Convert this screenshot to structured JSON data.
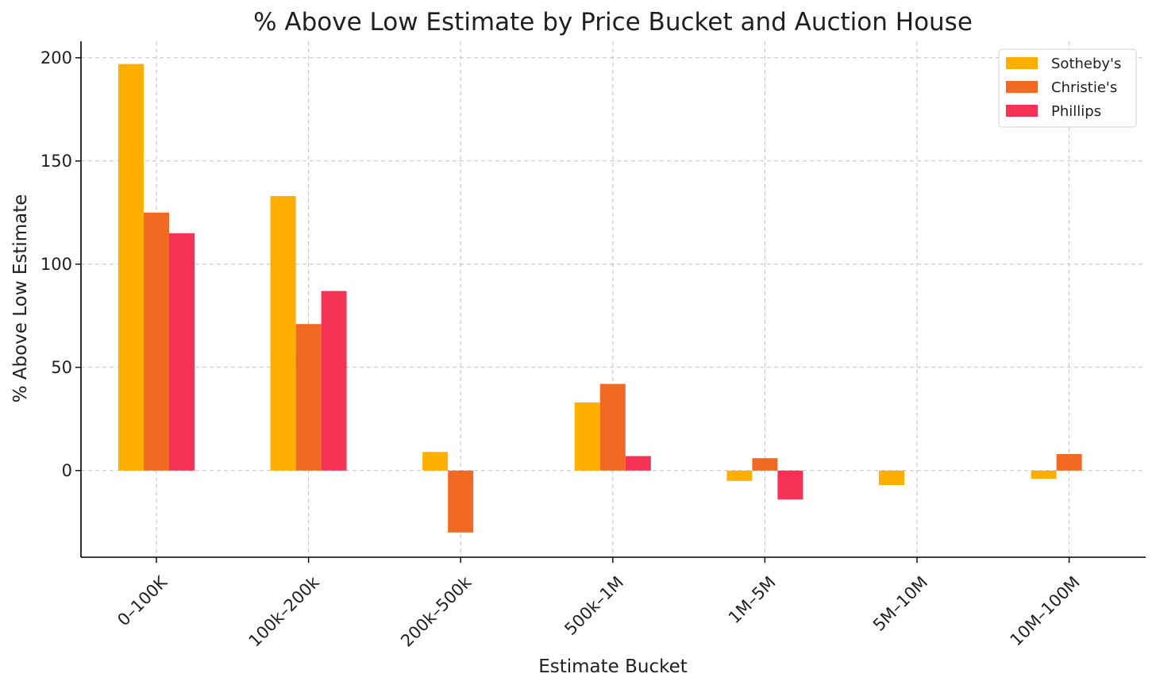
{
  "chart_data": {
    "type": "bar",
    "title": "% Above Low Estimate by Price Bucket and Auction House",
    "xlabel": "Estimate Bucket",
    "ylabel": "% Above Low Estimate",
    "categories": [
      "0–100K",
      "100k–200k",
      "200k–500k",
      "500k–1M",
      "1M–5M",
      "5M–10M",
      "10M–100M"
    ],
    "series": [
      {
        "name": "Sotheby's",
        "color": "#FFAF00",
        "values": [
          197,
          133,
          9,
          33,
          -5,
          -7,
          -4
        ]
      },
      {
        "name": "Christie's",
        "color": "#F06A23",
        "values": [
          125,
          71,
          -30,
          42,
          6,
          null,
          8
        ]
      },
      {
        "name": "Phillips",
        "color": "#F53357",
        "values": [
          115,
          87,
          null,
          7,
          -14,
          null,
          null
        ]
      }
    ],
    "ylim": [
      -42,
      208
    ],
    "yticks": [
      0,
      50,
      100,
      150,
      200
    ],
    "grid": true,
    "legend_position": "top-right"
  }
}
